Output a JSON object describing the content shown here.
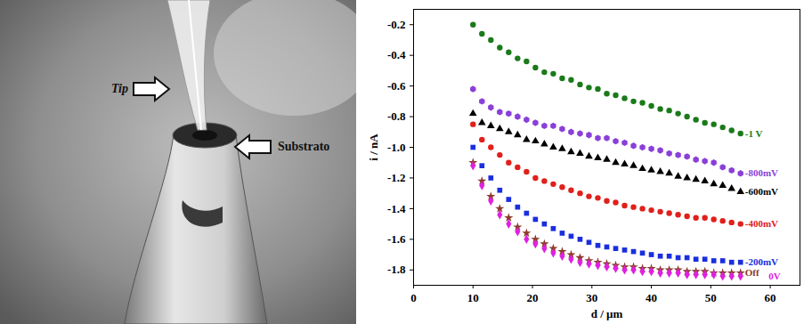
{
  "image_labels": [
    "Tip",
    "Substrato"
  ],
  "chart_data": {
    "type": "scatter",
    "x_label": "d / µm",
    "y_label": "i / nA",
    "xlim": [
      0,
      65
    ],
    "xticks": [
      0,
      10,
      20,
      30,
      40,
      50,
      60
    ],
    "ylim": [
      -1.9,
      -0.1
    ],
    "yticks": [
      -0.2,
      -0.4,
      -0.6,
      -0.8,
      {
        "value": -1,
        "label": "-1.0"
      },
      -1.2,
      -1.4,
      -1.6,
      -1.8
    ],
    "x": [
      10,
      11.5,
      13,
      14.5,
      16,
      17.5,
      19,
      20.5,
      22,
      23.5,
      25,
      26.5,
      28,
      29.5,
      31,
      32.5,
      34,
      35.5,
      37,
      38.5,
      40,
      41.5,
      43,
      44.5,
      46,
      47.5,
      49,
      50.5,
      52,
      53.5,
      55
    ],
    "series": [
      {
        "name": "-1 V",
        "color": "#1a7a1a",
        "marker": "circle",
        "values": [
          -0.2,
          -0.26,
          -0.3,
          -0.35,
          -0.38,
          -0.42,
          -0.44,
          -0.48,
          -0.51,
          -0.52,
          -0.55,
          -0.56,
          -0.59,
          -0.61,
          -0.62,
          -0.65,
          -0.66,
          -0.68,
          -0.7,
          -0.71,
          -0.73,
          -0.75,
          -0.76,
          -0.78,
          -0.8,
          -0.82,
          -0.84,
          -0.85,
          -0.87,
          -0.89,
          -0.91
        ]
      },
      {
        "name": "-800mV",
        "color": "#8a3fd8",
        "marker": "hexagon",
        "values": [
          -0.62,
          -0.7,
          -0.74,
          -0.77,
          -0.78,
          -0.8,
          -0.82,
          -0.84,
          -0.86,
          -0.86,
          -0.88,
          -0.9,
          -0.91,
          -0.92,
          -0.94,
          -0.94,
          -0.96,
          -0.97,
          -0.99,
          -1.0,
          -1.01,
          -1.02,
          -1.04,
          -1.05,
          -1.06,
          -1.08,
          -1.09,
          -1.1,
          -1.13,
          -1.15,
          -1.17
        ]
      },
      {
        "name": "-600mV",
        "color": "#000000",
        "marker": "triangle",
        "values": [
          -0.78,
          -0.84,
          -0.86,
          -0.88,
          -0.9,
          -0.92,
          -0.95,
          -0.96,
          -0.98,
          -1.0,
          -1.01,
          -1.03,
          -1.04,
          -1.06,
          -1.07,
          -1.08,
          -1.1,
          -1.11,
          -1.12,
          -1.14,
          -1.15,
          -1.16,
          -1.17,
          -1.19,
          -1.2,
          -1.21,
          -1.22,
          -1.24,
          -1.25,
          -1.27,
          -1.29
        ]
      },
      {
        "name": "-400mV",
        "color": "#e0201a",
        "marker": "circle",
        "values": [
          -0.85,
          -0.95,
          -1.0,
          -1.05,
          -1.1,
          -1.13,
          -1.16,
          -1.2,
          -1.22,
          -1.24,
          -1.26,
          -1.28,
          -1.3,
          -1.32,
          -1.33,
          -1.35,
          -1.36,
          -1.38,
          -1.39,
          -1.4,
          -1.41,
          -1.42,
          -1.43,
          -1.44,
          -1.45,
          -1.46,
          -1.46,
          -1.47,
          -1.48,
          -1.49,
          -1.5
        ]
      },
      {
        "name": "-200mV",
        "color": "#1a2ee0",
        "marker": "square",
        "values": [
          -1.0,
          -1.12,
          -1.2,
          -1.28,
          -1.34,
          -1.39,
          -1.43,
          -1.47,
          -1.5,
          -1.53,
          -1.56,
          -1.58,
          -1.6,
          -1.62,
          -1.64,
          -1.65,
          -1.66,
          -1.67,
          -1.68,
          -1.69,
          -1.7,
          -1.71,
          -1.71,
          -1.72,
          -1.72,
          -1.73,
          -1.73,
          -1.74,
          -1.74,
          -1.75,
          -1.75
        ]
      },
      {
        "name": "Off",
        "color": "#8b3a2a",
        "marker": "star",
        "values": [
          -1.1,
          -1.22,
          -1.32,
          -1.4,
          -1.46,
          -1.52,
          -1.56,
          -1.6,
          -1.63,
          -1.66,
          -1.68,
          -1.7,
          -1.72,
          -1.74,
          -1.75,
          -1.76,
          -1.77,
          -1.78,
          -1.78,
          -1.79,
          -1.79,
          -1.8,
          -1.8,
          -1.8,
          -1.81,
          -1.81,
          -1.81,
          -1.82,
          -1.82,
          -1.82,
          -1.82
        ]
      },
      {
        "name": "0V",
        "color": "#e020e0",
        "marker": "diamond",
        "values": [
          -1.12,
          -1.25,
          -1.35,
          -1.44,
          -1.5,
          -1.55,
          -1.6,
          -1.63,
          -1.66,
          -1.69,
          -1.71,
          -1.73,
          -1.75,
          -1.76,
          -1.77,
          -1.78,
          -1.79,
          -1.8,
          -1.8,
          -1.81,
          -1.81,
          -1.82,
          -1.82,
          -1.82,
          -1.83,
          -1.83,
          -1.83,
          -1.83,
          -1.84,
          -1.84,
          -1.84
        ]
      }
    ]
  }
}
